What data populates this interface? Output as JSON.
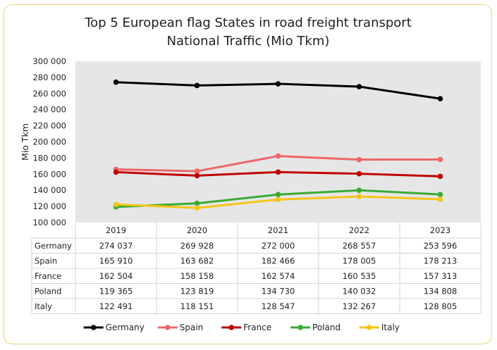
{
  "chart_data": {
    "type": "line",
    "title_lines": [
      "Top 5 European flag States in road freight transport",
      "National Traffic (Mio Tkm)"
    ],
    "ylabel": "Mio Tkm",
    "xlabel": "",
    "ylim": [
      100000,
      300000
    ],
    "ytick_step": 20000,
    "ytick_labels": [
      "100 000",
      "120 000",
      "140 000",
      "160 000",
      "180 000",
      "200 000",
      "220 000",
      "240 000",
      "260 000",
      "280 000",
      "300 000"
    ],
    "categories": [
      "2019",
      "2020",
      "2021",
      "2022",
      "2023"
    ],
    "grid": false,
    "legend": "bottom",
    "series": [
      {
        "name": "Germany",
        "color": "#000000",
        "values": [
          274037,
          269928,
          272000,
          268557,
          253596
        ],
        "labels": [
          "274 037",
          "269 928",
          "272 000",
          "268 557",
          "253 596"
        ]
      },
      {
        "name": "Spain",
        "color": "#ee6666",
        "values": [
          165910,
          163682,
          182466,
          178005,
          178213
        ],
        "labels": [
          "165 910",
          "163 682",
          "182 466",
          "178 005",
          "178 213"
        ]
      },
      {
        "name": "France",
        "color": "#c00000",
        "values": [
          162504,
          158158,
          162574,
          160535,
          157313
        ],
        "labels": [
          "162 504",
          "158 158",
          "162 574",
          "160 535",
          "157 313"
        ]
      },
      {
        "name": "Poland",
        "color": "#3aaa35",
        "values": [
          119365,
          123819,
          134730,
          140032,
          134808
        ],
        "labels": [
          "119 365",
          "123 819",
          "134 730",
          "140 032",
          "134 808"
        ]
      },
      {
        "name": "Italy",
        "color": "#f5c518",
        "values": [
          122491,
          118151,
          128547,
          132267,
          128805
        ],
        "labels": [
          "122 491",
          "118 151",
          "128 547",
          "132 267",
          "128 805"
        ]
      }
    ]
  }
}
